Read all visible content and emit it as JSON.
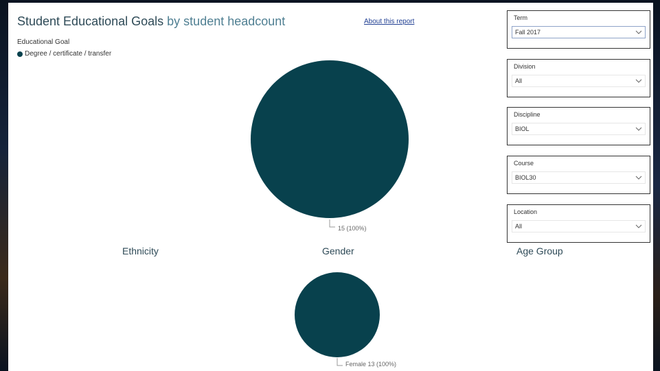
{
  "report": {
    "title_main": "Student Educational Goals",
    "title_sub": "by student headcount",
    "about_link": "About this report",
    "legend_title": "Educational Goal",
    "legend_item": "Degree / certificate / transfer"
  },
  "sections": {
    "ethnicity": "Ethnicity",
    "gender": "Gender",
    "age_group": "Age Group"
  },
  "slicers": [
    {
      "title": "Term",
      "value": "Fall 2017"
    },
    {
      "title": "Division",
      "value": "All"
    },
    {
      "title": "Discipline",
      "value": "BIOL"
    },
    {
      "title": "Course",
      "value": "BIOL30"
    },
    {
      "title": "Location",
      "value": "All"
    }
  ],
  "colors": {
    "series": "#08414d",
    "title": "#2e4a57",
    "link": "#1f3e92"
  },
  "icons": {
    "slicer_dropdown": "chevron-down-icon",
    "legend_marker": "circle-icon"
  },
  "chart_data": [
    {
      "type": "pie",
      "title": "Student Educational Goals by student headcount",
      "legend": {
        "title": "Educational Goal",
        "placement": "top-left"
      },
      "slices": [
        {
          "label": "Degree / certificate / transfer",
          "value": 15,
          "percent": 100,
          "data_label": "15 (100%)"
        }
      ]
    },
    {
      "type": "pie",
      "title": "Gender",
      "slices": [
        {
          "label": "Female",
          "value": 13,
          "percent": 100,
          "data_label": "Female 13 (100%)"
        }
      ]
    }
  ]
}
